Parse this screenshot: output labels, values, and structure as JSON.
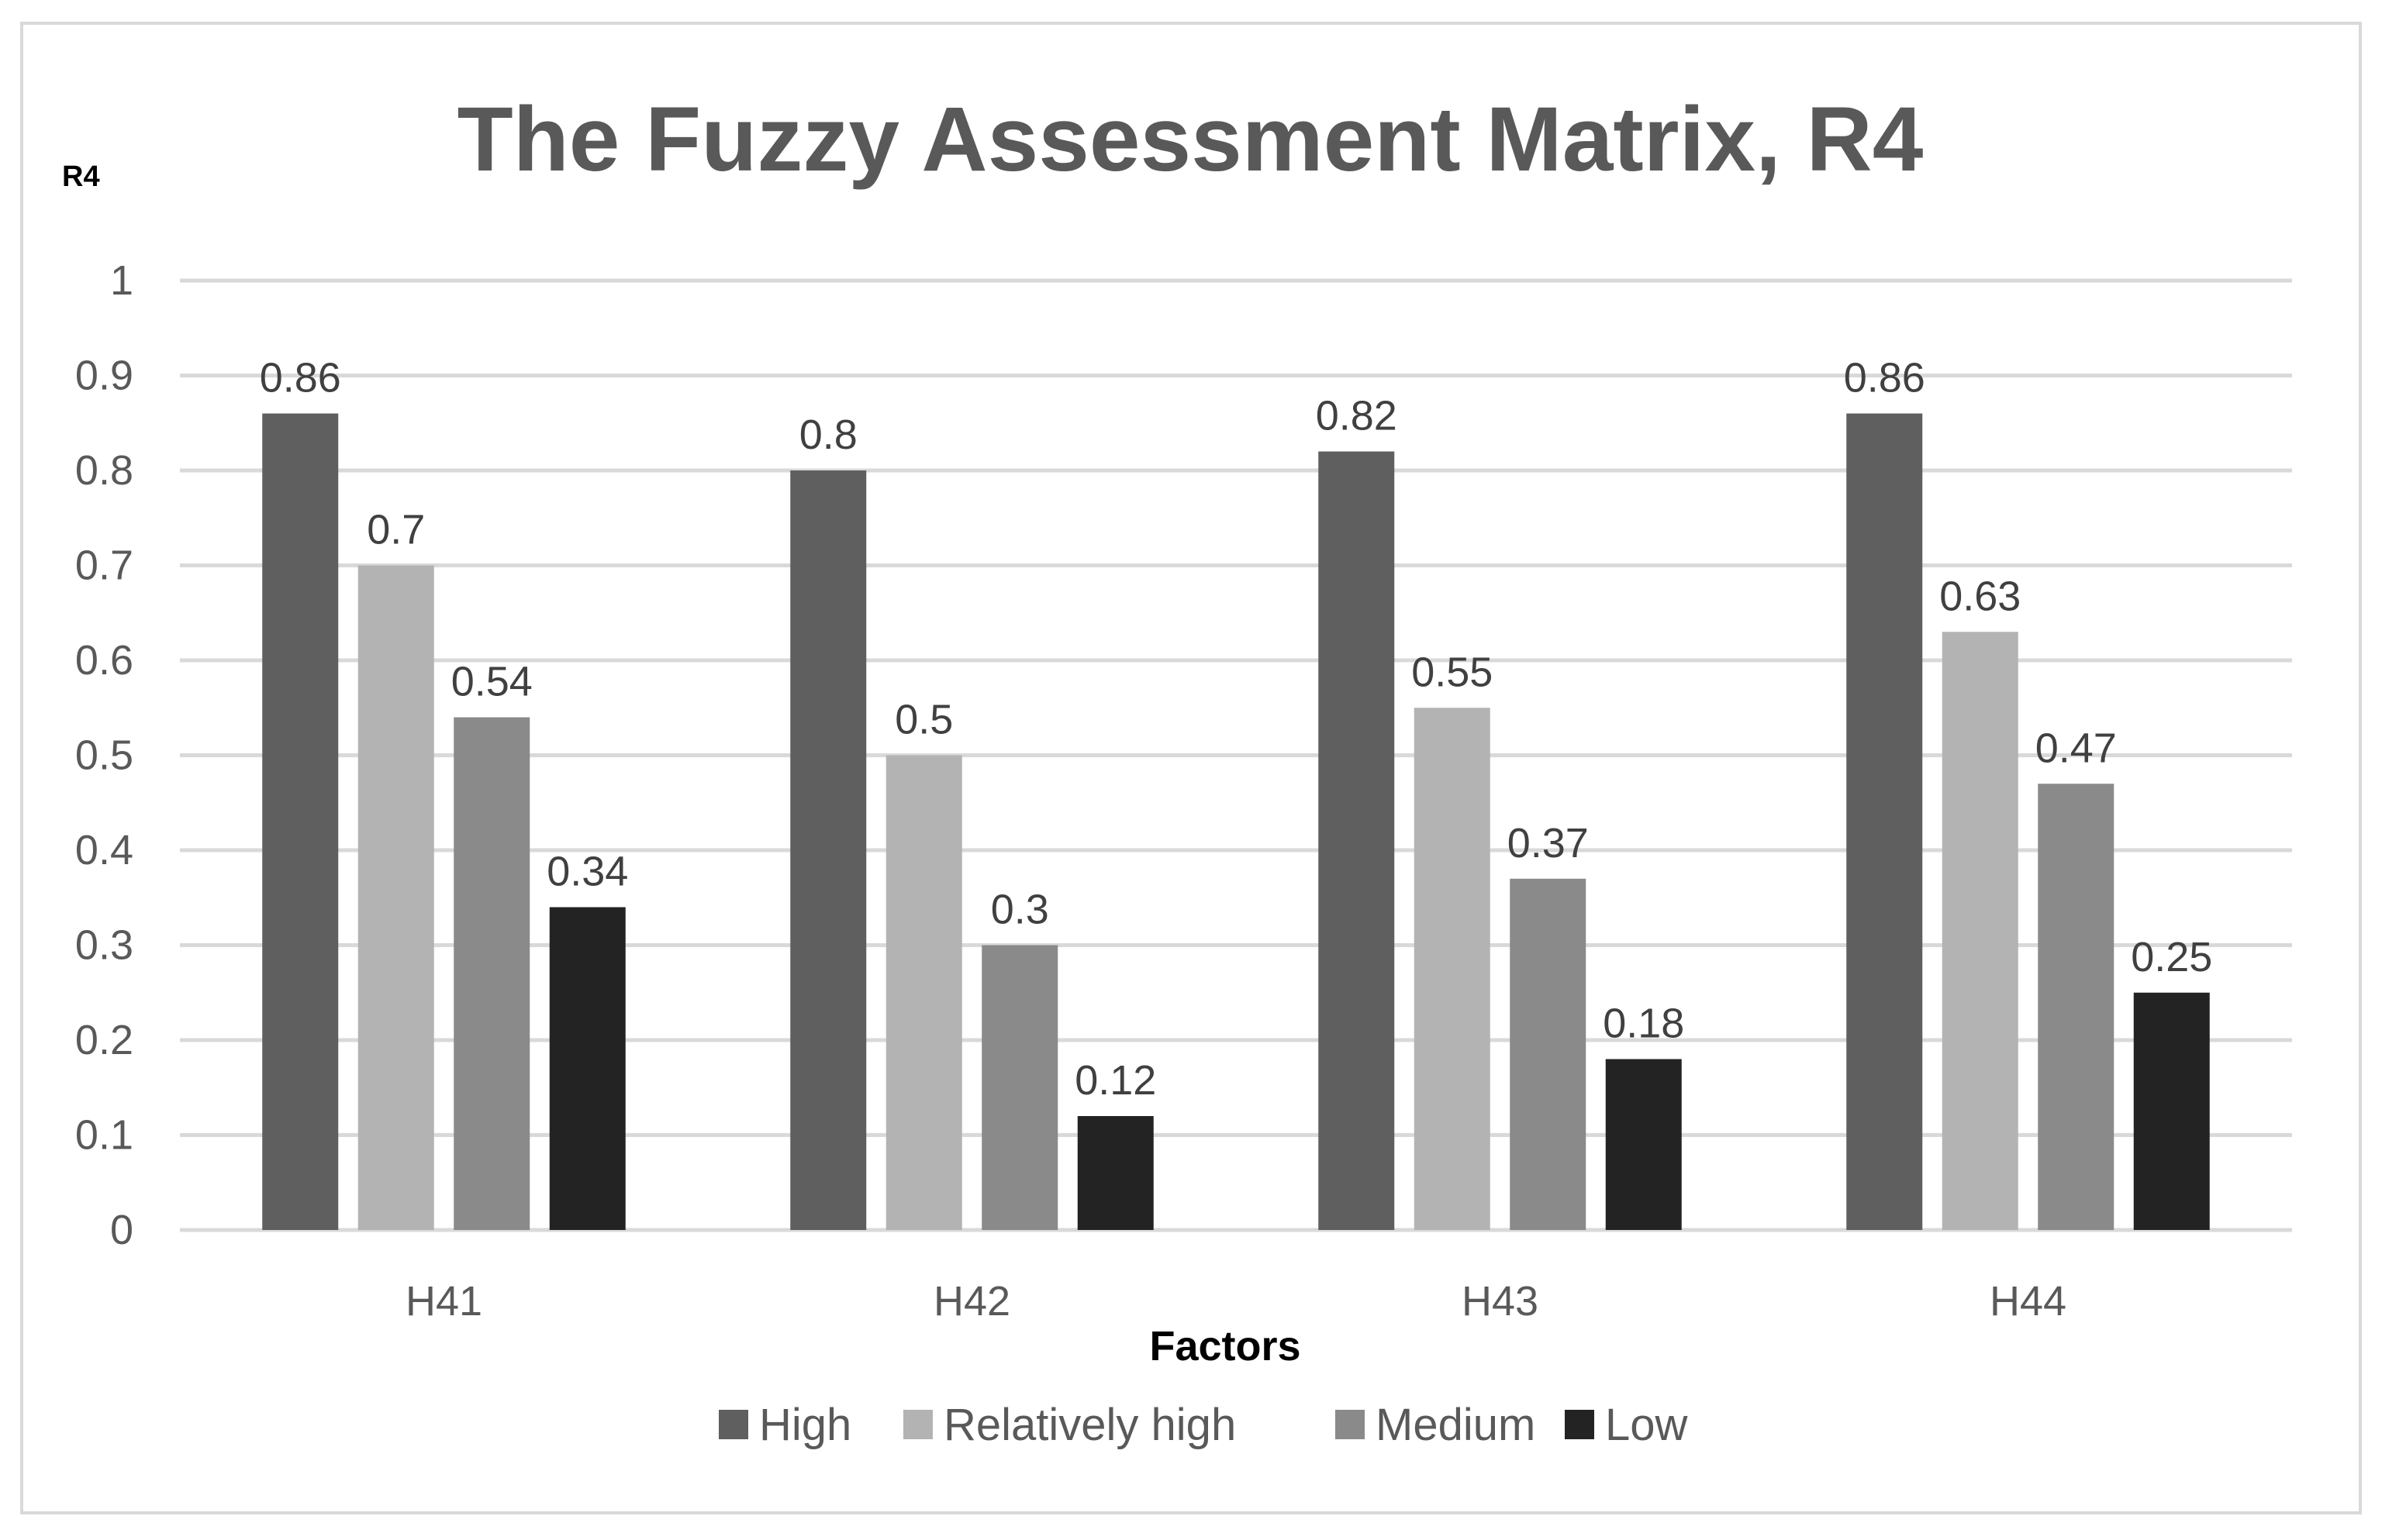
{
  "chart_data": {
    "type": "bar",
    "title": "The Fuzzy Assessment Matrix, R4",
    "ylabel": "R4",
    "xlabel": "Factors",
    "ylim": [
      0,
      1
    ],
    "yticks": [
      "0",
      "0.1",
      "0.2",
      "0.3",
      "0.4",
      "0.5",
      "0.6",
      "0.7",
      "0.8",
      "0.9",
      "1"
    ],
    "categories": [
      "H41",
      "H42",
      "H43",
      "H44"
    ],
    "series": [
      {
        "name": "High",
        "color": "#5f5f5f",
        "values": [
          0.86,
          0.8,
          0.82,
          0.86
        ],
        "labels": [
          "0.86",
          "0.8",
          "0.82",
          "0.86"
        ]
      },
      {
        "name": "Relatively high",
        "color": "#b3b3b3",
        "values": [
          0.7,
          0.5,
          0.55,
          0.63
        ],
        "labels": [
          "0.7",
          "0.5",
          "0.55",
          "0.63"
        ]
      },
      {
        "name": "Medium",
        "color": "#8a8a8a",
        "values": [
          0.54,
          0.3,
          0.37,
          0.47
        ],
        "labels": [
          "0.54",
          "0.3",
          "0.37",
          "0.47"
        ]
      },
      {
        "name": "Low",
        "color": "#232323",
        "values": [
          0.34,
          0.12,
          0.18,
          0.25
        ],
        "labels": [
          "0.34",
          "0.12",
          "0.18",
          "0.25"
        ]
      }
    ],
    "grid": true,
    "legend_position": "bottom",
    "colors": {
      "gridline": "#d9d9d9",
      "text": "#595959",
      "title": "#595959",
      "axis_title": "#000000",
      "border": "#d9d9d9"
    }
  }
}
